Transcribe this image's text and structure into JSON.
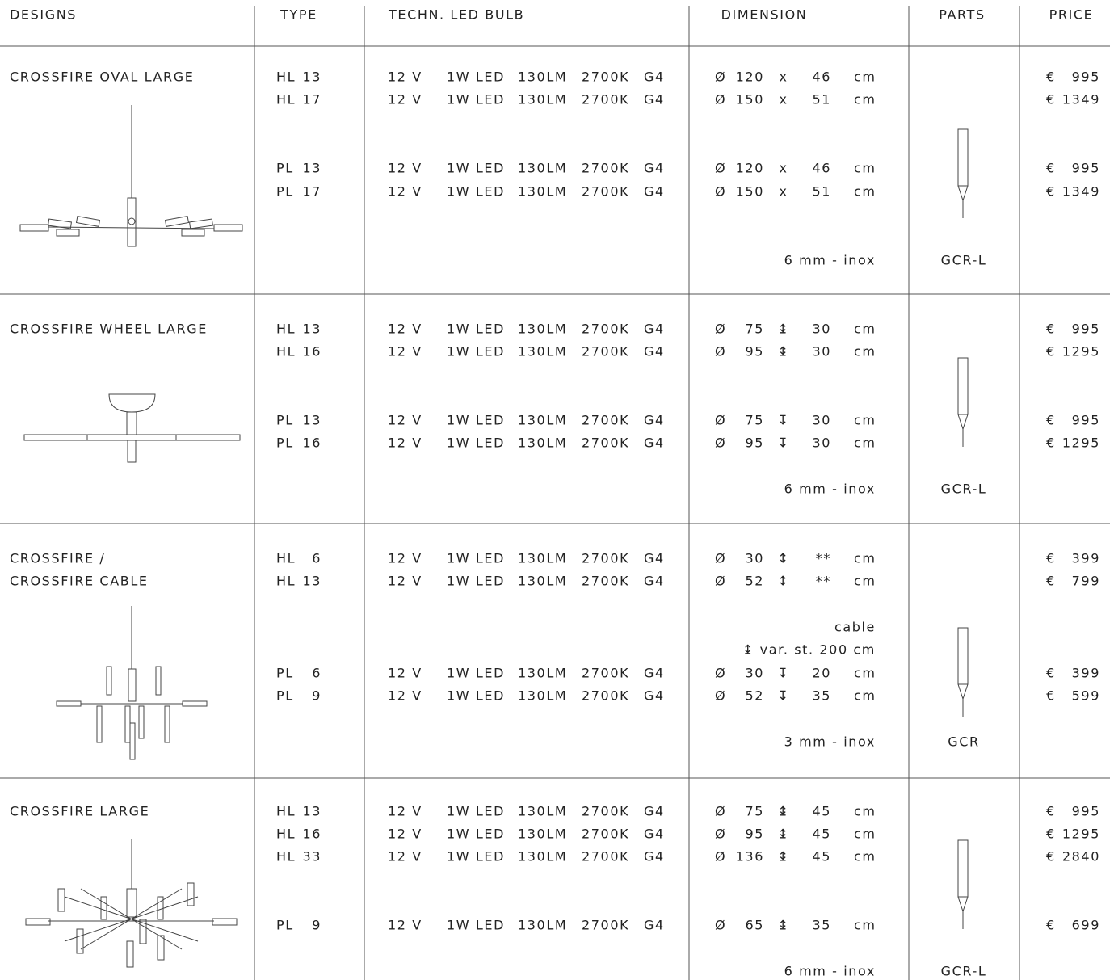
{
  "header": {
    "columns": [
      "DESIGNS",
      "TYPE",
      "TECHN. LED BULB",
      "DIMENSION",
      "PARTS",
      "PRICE"
    ]
  },
  "sections": [
    {
      "design": [
        "CROSSFIRE OVAL LARGE"
      ],
      "entries": [
        {
          "type": [
            "HL",
            "13"
          ],
          "bulb": [
            "12 V",
            "1W LED",
            "130LM",
            "2700K",
            "G4"
          ],
          "dimension": [
            "Ø",
            "120",
            "x",
            "46",
            "cm"
          ],
          "price": [
            "€",
            "995"
          ]
        },
        {
          "type": [
            "HL",
            "17"
          ],
          "bulb": [
            "12 V",
            "1W LED",
            "130LM",
            "2700K",
            "G4"
          ],
          "dimension": [
            "Ø",
            "150",
            "x",
            "51",
            "cm"
          ],
          "price": [
            "€",
            "1349"
          ]
        },
        {
          "type": [
            "PL",
            "13"
          ],
          "bulb": [
            "12 V",
            "1W LED",
            "130LM",
            "2700K",
            "G4"
          ],
          "dimension": [
            "Ø",
            "120",
            "x",
            "46",
            "cm"
          ],
          "price": [
            "€",
            "995"
          ]
        },
        {
          "type": [
            "PL",
            "17"
          ],
          "bulb": [
            "12 V",
            "1W LED",
            "130LM",
            "2700K",
            "G4"
          ],
          "dimension": [
            "Ø",
            "150",
            "x",
            "51",
            "cm"
          ],
          "price": [
            "€",
            "1349"
          ]
        }
      ],
      "note": "6 mm - inox",
      "part": "GCR-L"
    },
    {
      "design": [
        "CROSSFIRE WHEEL LARGE"
      ],
      "entries": [
        {
          "type": [
            "HL",
            "13"
          ],
          "bulb": [
            "12 V",
            "1W LED",
            "130LM",
            "2700K",
            "G4"
          ],
          "dimension": [
            "Ø",
            "75",
            "↨",
            "30",
            "cm"
          ],
          "price": [
            "€",
            "995"
          ]
        },
        {
          "type": [
            "HL",
            "16"
          ],
          "bulb": [
            "12 V",
            "1W LED",
            "130LM",
            "2700K",
            "G4"
          ],
          "dimension": [
            "Ø",
            "95",
            "↨",
            "30",
            "cm"
          ],
          "price": [
            "€",
            "1295"
          ]
        },
        {
          "type": [
            "PL",
            "13"
          ],
          "bulb": [
            "12 V",
            "1W LED",
            "130LM",
            "2700K",
            "G4"
          ],
          "dimension": [
            "Ø",
            "75",
            "↧",
            "30",
            "cm"
          ],
          "price": [
            "€",
            "995"
          ]
        },
        {
          "type": [
            "PL",
            "16"
          ],
          "bulb": [
            "12 V",
            "1W LED",
            "130LM",
            "2700K",
            "G4"
          ],
          "dimension": [
            "Ø",
            "95",
            "↧",
            "30",
            "cm"
          ],
          "price": [
            "€",
            "1295"
          ]
        }
      ],
      "note": "6 mm - inox",
      "part": "GCR-L"
    },
    {
      "design": [
        "CROSSFIRE /",
        "CROSSFIRE CABLE"
      ],
      "entries": [
        {
          "type": [
            "HL",
            "6"
          ],
          "bulb": [
            "12 V",
            "1W LED",
            "130LM",
            "2700K",
            "G4"
          ],
          "dimension": [
            "Ø",
            "30",
            "↕",
            "**",
            "cm"
          ],
          "price": [
            "€",
            "399"
          ]
        },
        {
          "type": [
            "HL",
            "13"
          ],
          "bulb": [
            "12 V",
            "1W LED",
            "130LM",
            "2700K",
            "G4"
          ],
          "dimension": [
            "Ø",
            "52",
            "↕",
            "**",
            "cm"
          ],
          "price": [
            "€",
            "799"
          ]
        },
        {
          "type": [
            "PL",
            "6"
          ],
          "bulb": [
            "12 V",
            "1W LED",
            "130LM",
            "2700K",
            "G4"
          ],
          "dimension": [
            "Ø",
            "30",
            "↧",
            "20",
            "cm"
          ],
          "price": [
            "€",
            "399"
          ]
        },
        {
          "type": [
            "PL",
            "9"
          ],
          "bulb": [
            "12 V",
            "1W LED",
            "130LM",
            "2700K",
            "G4"
          ],
          "dimension": [
            "Ø",
            "52",
            "↧",
            "35",
            "cm"
          ],
          "price": [
            "€",
            "599"
          ]
        }
      ],
      "dimension_notes": [
        "cable",
        "↨ var. st. 200 cm"
      ],
      "note": "3 mm - inox",
      "part": "GCR"
    },
    {
      "design": [
        "CROSSFIRE LARGE"
      ],
      "entries": [
        {
          "type": [
            "HL",
            "13"
          ],
          "bulb": [
            "12 V",
            "1W LED",
            "130LM",
            "2700K",
            "G4"
          ],
          "dimension": [
            "Ø",
            "75",
            "↨",
            "45",
            "cm"
          ],
          "price": [
            "€",
            "995"
          ]
        },
        {
          "type": [
            "HL",
            "16"
          ],
          "bulb": [
            "12 V",
            "1W LED",
            "130LM",
            "2700K",
            "G4"
          ],
          "dimension": [
            "Ø",
            "95",
            "↨",
            "45",
            "cm"
          ],
          "price": [
            "€",
            "1295"
          ]
        },
        {
          "type": [
            "HL",
            "33"
          ],
          "bulb": [
            "12 V",
            "1W LED",
            "130LM",
            "2700K",
            "G4"
          ],
          "dimension": [
            "Ø",
            "136",
            "↨",
            "45",
            "cm"
          ],
          "price": [
            "€",
            "2840"
          ]
        },
        {
          "type": [
            "PL",
            "9"
          ],
          "bulb": [
            "12 V",
            "1W LED",
            "130LM",
            "2700K",
            "G4"
          ],
          "dimension": [
            "Ø",
            "65",
            "↨",
            "35",
            "cm"
          ],
          "price": [
            "€",
            "699"
          ]
        }
      ],
      "note": "6 mm - inox",
      "part": "GCR-L"
    }
  ]
}
